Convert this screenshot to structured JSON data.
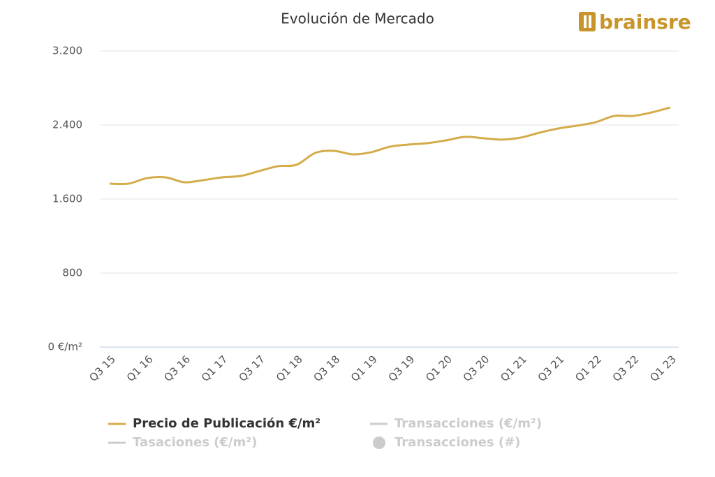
{
  "chart_data": {
    "type": "line",
    "title": "Evolución de Mercado",
    "logo": "brainsre",
    "categories": [
      "Q3 15",
      null,
      "Q1 16",
      null,
      "Q3 16",
      null,
      "Q1 17",
      null,
      "Q3 17",
      null,
      "Q1 18",
      null,
      "Q3 18",
      null,
      "Q1 19",
      null,
      "Q3 19",
      null,
      "Q1 20",
      null,
      "Q3 20",
      null,
      "Q1 21",
      null,
      "Q3 21",
      null,
      "Q1 22",
      null,
      "Q3 22",
      null,
      "Q1 23"
    ],
    "series": [
      {
        "name": "Precio de Publicación €/m²",
        "color": "#d4ac4a",
        "values": [
          1766,
          1766,
          1826,
          1834,
          1781,
          1804,
          1834,
          1849,
          1902,
          1955,
          1970,
          2098,
          2121,
          2083,
          2106,
          2166,
          2189,
          2204,
          2234,
          2272,
          2257,
          2242,
          2264,
          2317,
          2362,
          2393,
          2430,
          2498,
          2498,
          2536,
          2589
        ]
      }
    ],
    "legend": [
      {
        "name": "Precio de Publicación €/m²",
        "color": "#d4ac4a",
        "symbol": "line",
        "hidden": false
      },
      {
        "name": "Transacciones (€/m²)",
        "color": "#cccccc",
        "symbol": "line",
        "hidden": true
      },
      {
        "name": "Tasaciones (€/m²)",
        "color": "#cccccc",
        "symbol": "line",
        "hidden": true
      },
      {
        "name": "Transacciones (#)",
        "color": "#cccccc",
        "symbol": "circle",
        "hidden": true
      }
    ],
    "ylim": [
      0,
      3200
    ],
    "yticks": [
      {
        "value": 0,
        "label": "0 €/m²"
      },
      800,
      {
        "value": 1600,
        "label": "1.600"
      },
      {
        "value": 2400,
        "label": "2.400"
      },
      {
        "value": 3200,
        "label": "3.200"
      }
    ],
    "grid": true
  }
}
